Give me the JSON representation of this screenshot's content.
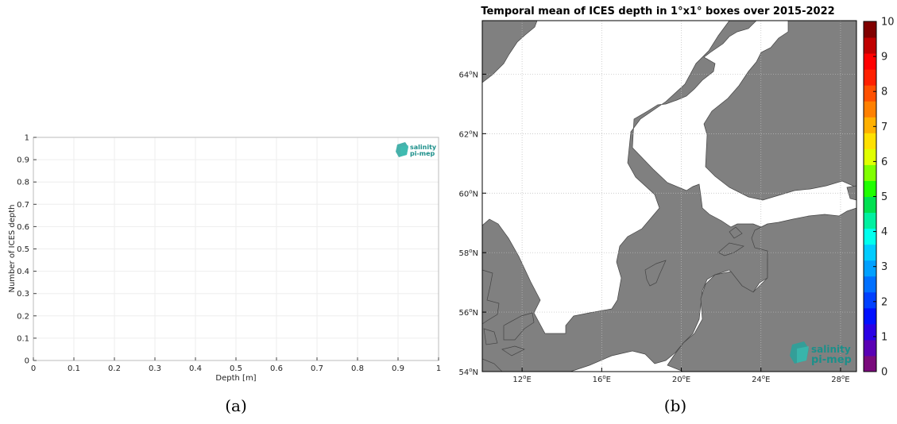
{
  "chart_data": [
    {
      "type": "bar",
      "panel": "(a)",
      "xlabel": "Depth [m]",
      "ylabel": "Number of ICES depth",
      "xlim": [
        0,
        1
      ],
      "ylim": [
        0,
        1
      ],
      "x_ticks": [
        "0",
        "0.1",
        "0.2",
        "0.3",
        "0.4",
        "0.5",
        "0.6",
        "0.7",
        "0.8",
        "0.9",
        "1"
      ],
      "y_ticks": [
        "0",
        "0.1",
        "0.2",
        "0.3",
        "0.4",
        "0.5",
        "0.6",
        "0.7",
        "0.8",
        "0.9",
        "1"
      ],
      "values": [],
      "grid": true,
      "logo": [
        "salinity",
        "pi-mep"
      ]
    },
    {
      "type": "heatmap",
      "panel": "(b)",
      "title": "Temporal mean of ICES depth in 1°x1° boxes over 2015-2022",
      "lon_range": [
        10,
        28.8
      ],
      "lat_range": [
        54,
        65.8
      ],
      "x_ticks": [
        {
          "deg": "12",
          "suffix": "E"
        },
        {
          "deg": "16",
          "suffix": "E"
        },
        {
          "deg": "20",
          "suffix": "E"
        },
        {
          "deg": "24",
          "suffix": "E"
        },
        {
          "deg": "28",
          "suffix": "E"
        }
      ],
      "y_ticks": [
        {
          "deg": "54",
          "suffix": "N"
        },
        {
          "deg": "56",
          "suffix": "N"
        },
        {
          "deg": "58",
          "suffix": "N"
        },
        {
          "deg": "60",
          "suffix": "N"
        },
        {
          "deg": "62",
          "suffix": "N"
        },
        {
          "deg": "64",
          "suffix": "N"
        }
      ],
      "values": [],
      "colorbar": {
        "min": 0,
        "max": 10,
        "ticks": [
          "0",
          "1",
          "2",
          "3",
          "4",
          "5",
          "6",
          "7",
          "8",
          "9",
          "10"
        ],
        "colors": [
          "#7a0a7c",
          "#5a00b4",
          "#2a00e4",
          "#0010ff",
          "#0040ff",
          "#0070ff",
          "#00a0ff",
          "#00ccff",
          "#00ffee",
          "#00f0a0",
          "#00e050",
          "#20ff00",
          "#80ff00",
          "#e0ff00",
          "#ffe000",
          "#ffb000",
          "#ff8000",
          "#ff5000",
          "#ff2000",
          "#ff0000",
          "#c00000",
          "#800000"
        ]
      },
      "land_color": "#808080",
      "logo": [
        "salinity",
        "pi-mep"
      ]
    }
  ],
  "captions": [
    "(a)",
    "(b)"
  ]
}
